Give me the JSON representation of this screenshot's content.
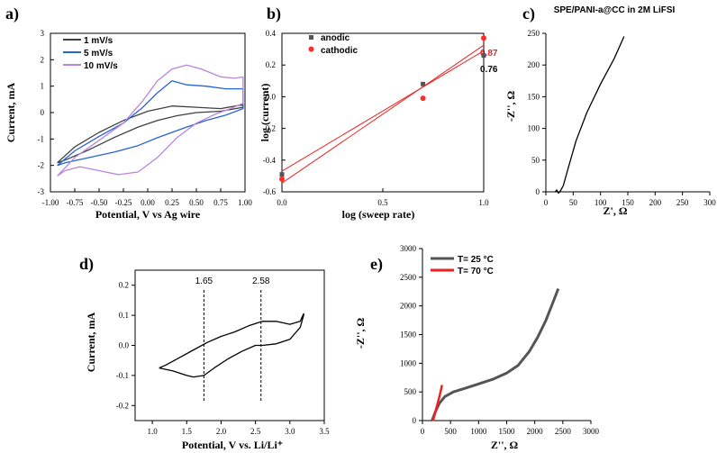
{
  "chart_data": [
    {
      "id": "a",
      "panel_label": "a)",
      "type": "line",
      "title": "",
      "xlabel": "Potential, V vs Ag wire",
      "ylabel": "Current, mA",
      "xlim": [
        -1.0,
        1.0
      ],
      "ylim": [
        -3,
        3
      ],
      "x_ticks": [
        "-1.00",
        "-0.75",
        "-0.50",
        "-0.25",
        "0.00",
        "0.25",
        "0.50",
        "0.75",
        "1.00"
      ],
      "y_ticks": [
        "-3",
        "-2",
        "-1",
        "0",
        "1",
        "2",
        "3"
      ],
      "legend_position": "top-left",
      "series": [
        {
          "name": "1 mV/s",
          "color": "#404040",
          "x": [
            -0.93,
            -0.75,
            -0.5,
            -0.25,
            0.0,
            0.25,
            0.5,
            0.75,
            0.98,
            0.98,
            0.75,
            0.5,
            0.3,
            0.1,
            -0.1,
            -0.35,
            -0.6,
            -0.85,
            -0.93
          ],
          "y": [
            -1.9,
            -1.3,
            -0.75,
            -0.3,
            0.05,
            0.25,
            0.2,
            0.15,
            0.3,
            0.2,
            0.05,
            0.0,
            -0.12,
            -0.3,
            -0.55,
            -0.95,
            -1.4,
            -1.8,
            -1.9
          ]
        },
        {
          "name": "5 mV/s",
          "color": "#2563d6",
          "x": [
            -0.93,
            -0.75,
            -0.5,
            -0.25,
            -0.05,
            0.1,
            0.25,
            0.4,
            0.6,
            0.8,
            0.98,
            0.98,
            0.8,
            0.6,
            0.4,
            0.25,
            0.1,
            -0.1,
            -0.35,
            -0.6,
            -0.85,
            -0.93
          ],
          "y": [
            -2.0,
            -1.45,
            -0.9,
            -0.4,
            0.2,
            0.75,
            1.2,
            1.05,
            1.0,
            0.9,
            0.9,
            0.15,
            -0.1,
            -0.3,
            -0.55,
            -0.75,
            -0.95,
            -1.25,
            -1.5,
            -1.7,
            -1.9,
            -2.0
          ]
        },
        {
          "name": "10 mV/s",
          "color": "#b884e0",
          "x": [
            -0.93,
            -0.75,
            -0.5,
            -0.25,
            -0.05,
            0.1,
            0.25,
            0.4,
            0.55,
            0.75,
            0.9,
            0.98,
            0.98,
            0.85,
            0.7,
            0.5,
            0.3,
            0.1,
            -0.1,
            -0.3,
            -0.5,
            -0.7,
            -0.85,
            -0.93
          ],
          "y": [
            -2.4,
            -1.7,
            -1.05,
            -0.4,
            0.45,
            1.2,
            1.65,
            1.8,
            1.65,
            1.35,
            1.3,
            1.35,
            0.35,
            0.15,
            -0.05,
            -0.4,
            -0.95,
            -1.7,
            -2.25,
            -2.35,
            -2.2,
            -2.05,
            -2.2,
            -2.4
          ]
        }
      ]
    },
    {
      "id": "b",
      "panel_label": "b)",
      "type": "scatter",
      "title": "",
      "xlabel": "log (sweep rate)",
      "ylabel": "log (current)",
      "xlim": [
        0.0,
        1.0
      ],
      "ylim": [
        -0.6,
        0.4
      ],
      "x_ticks": [
        "0.0",
        "0.5",
        "1.0"
      ],
      "y_ticks": [
        "-0.6",
        "-0.4",
        "-0.2",
        "0.0",
        "0.2",
        "0.4"
      ],
      "legend_position": "top-left",
      "series": [
        {
          "name": "anodic",
          "color": "#555555",
          "marker": "square",
          "x": [
            0.0,
            0.699,
            1.0
          ],
          "y": [
            -0.49,
            0.08,
            0.26
          ],
          "slope_label": "0.76"
        },
        {
          "name": "cathodic",
          "color": "#ff2a2a",
          "marker": "circle",
          "x": [
            0.0,
            0.699,
            1.0
          ],
          "y": [
            -0.52,
            -0.01,
            0.37
          ],
          "slope_label": "0.87"
        }
      ],
      "fit_lines": [
        {
          "name": "anodic fit",
          "color": "#ee2222",
          "x": [
            0.0,
            1.0
          ],
          "y": [
            -0.47,
            0.29
          ]
        },
        {
          "name": "cathodic fit",
          "color": "#ee2222",
          "x": [
            0.0,
            1.0
          ],
          "y": [
            -0.545,
            0.325
          ]
        }
      ]
    },
    {
      "id": "c",
      "panel_label": "c)",
      "type": "line",
      "title": "SPE/PANI-a@CC in 2M LiFSI",
      "xlabel": "Z', Ω",
      "ylabel": "-Z'', Ω",
      "xlim": [
        0,
        300
      ],
      "ylim": [
        0,
        250
      ],
      "x_ticks": [
        "0",
        "50",
        "100",
        "150",
        "200",
        "250",
        "300"
      ],
      "y_ticks": [
        "0",
        "50",
        "100",
        "150",
        "200",
        "250"
      ],
      "series": [
        {
          "name": "Nyquist",
          "color": "#000000",
          "x": [
            17,
            20,
            23,
            27,
            32,
            40,
            55,
            75,
            100,
            125,
            143
          ],
          "y": [
            0,
            3,
            -2,
            2,
            10,
            35,
            80,
            125,
            170,
            210,
            245
          ]
        }
      ]
    },
    {
      "id": "d",
      "panel_label": "d)",
      "type": "line",
      "title": "",
      "xlabel": "Potential, V vs. Li/Li⁺",
      "ylabel": "Current, mA",
      "xlim": [
        0.75,
        3.5
      ],
      "ylim": [
        -0.25,
        0.25
      ],
      "x_ticks": [
        "1.0",
        "1.5",
        "2.0",
        "2.5",
        "3.0",
        "3.5"
      ],
      "y_ticks": [
        "-0.2",
        "-0.1",
        "0.0",
        "0.1",
        "0.2"
      ],
      "annotations": [
        {
          "text": "1.65",
          "x": 1.75
        },
        {
          "text": "2.58",
          "x": 2.58
        }
      ],
      "series": [
        {
          "name": "CV",
          "color": "#000000",
          "x": [
            1.1,
            1.3,
            1.5,
            1.6,
            1.75,
            1.9,
            2.1,
            2.3,
            2.5,
            2.6,
            2.8,
            3.0,
            3.15,
            3.2,
            3.2,
            3.15,
            3.0,
            2.8,
            2.6,
            2.4,
            2.2,
            2.0,
            1.8,
            1.6,
            1.4,
            1.2,
            1.1
          ],
          "y": [
            -0.075,
            -0.085,
            -0.1,
            -0.105,
            -0.1,
            -0.075,
            -0.045,
            -0.02,
            0.0,
            0.0,
            0.005,
            0.02,
            0.06,
            0.1,
            0.105,
            0.08,
            0.07,
            0.08,
            0.08,
            0.065,
            0.045,
            0.03,
            0.01,
            -0.015,
            -0.04,
            -0.065,
            -0.075
          ]
        }
      ]
    },
    {
      "id": "e",
      "panel_label": "e)",
      "type": "line",
      "title": "",
      "xlabel": "Z'', Ω",
      "ylabel": "-Z'', Ω",
      "xlim": [
        0,
        3000
      ],
      "ylim": [
        0,
        3000
      ],
      "x_ticks": [
        "0",
        "500",
        "1000",
        "1500",
        "2000",
        "2500",
        "3000"
      ],
      "y_ticks": [
        "0",
        "500",
        "1000",
        "1500",
        "2000",
        "2500",
        "3000"
      ],
      "legend_position": "top-left",
      "series": [
        {
          "name": "T= 25 °C",
          "color": "#555555",
          "x": [
            170,
            230,
            300,
            400,
            550,
            750,
            1000,
            1250,
            1500,
            1700,
            1900,
            2050,
            2200,
            2320,
            2420
          ],
          "y": [
            0,
            150,
            300,
            420,
            500,
            560,
            640,
            720,
            830,
            960,
            1200,
            1450,
            1750,
            2050,
            2300
          ]
        },
        {
          "name": "T= 70 °C",
          "color": "#ee2222",
          "x": [
            190,
            230,
            270,
            310,
            350
          ],
          "y": [
            0,
            150,
            300,
            450,
            620
          ]
        }
      ]
    }
  ]
}
